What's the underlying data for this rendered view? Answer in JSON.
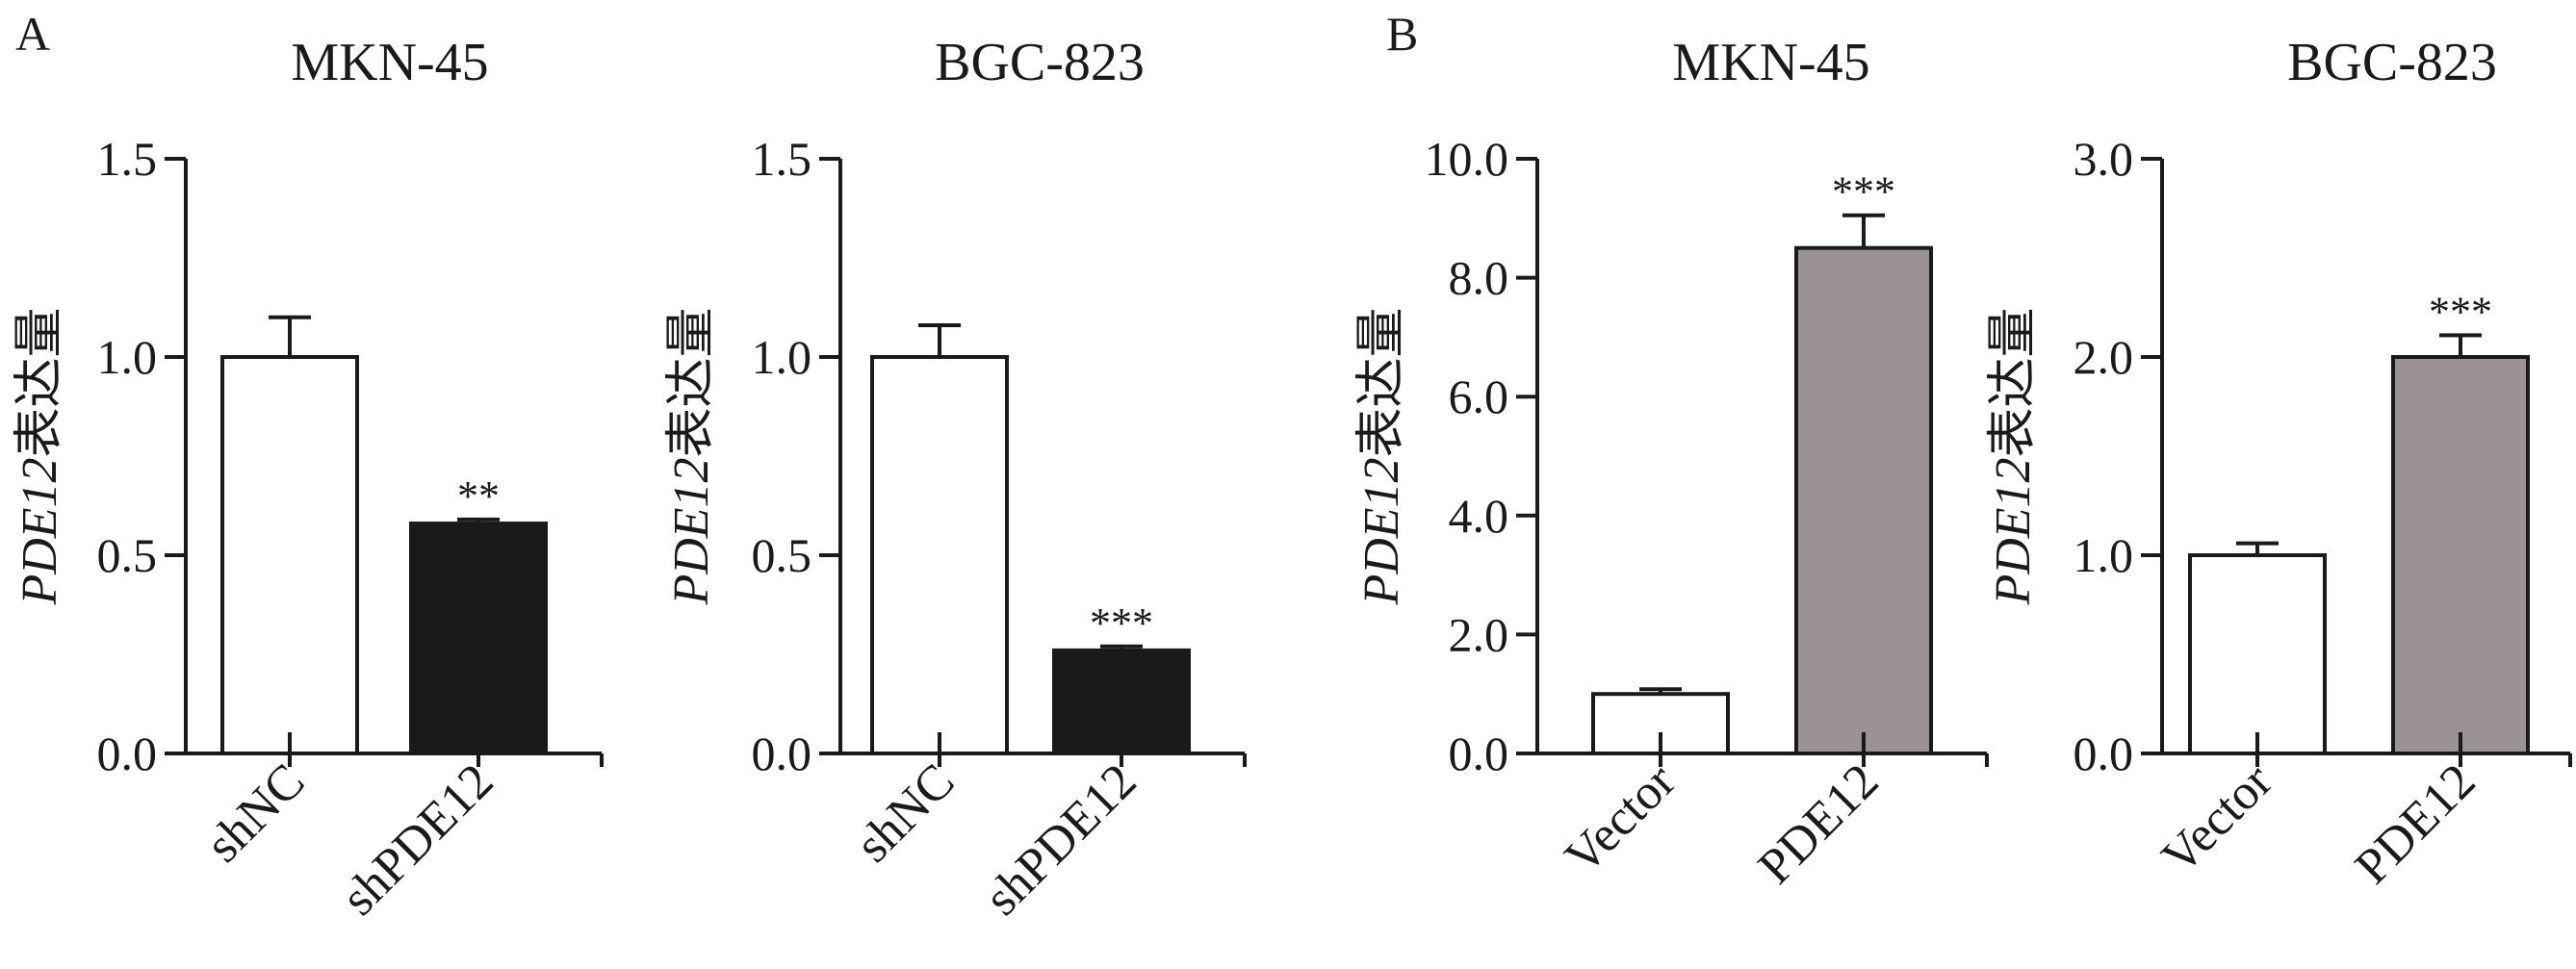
{
  "panel_letters": [
    "A",
    "B"
  ],
  "colors": {
    "axis": "#1a1a1a",
    "bar_control": "#ffffff",
    "bar_knockdown": "#1a1a1a",
    "bar_overexpression": "#9b9295"
  },
  "chart_data": [
    {
      "type": "bar",
      "panel": "A",
      "title": "MKN-45",
      "ylabel_gene": "PDE12",
      "ylabel_text": "表达量",
      "categories": [
        "shNC",
        "shPDE12"
      ],
      "values": [
        1.0,
        0.58
      ],
      "errors": [
        0.1,
        0.01
      ],
      "significance": [
        "",
        "**"
      ],
      "bar_colors": [
        "#ffffff",
        "#1a1a1a"
      ],
      "ylim": [
        0,
        1.5
      ],
      "yticks": [
        "0.0",
        "0.5",
        "1.0",
        "1.5"
      ],
      "ytick_values": [
        0,
        0.5,
        1.0,
        1.5
      ]
    },
    {
      "type": "bar",
      "panel": "A",
      "title": "BGC-823",
      "ylabel_gene": "PDE12",
      "ylabel_text": "表达量",
      "categories": [
        "shNC",
        "shPDE12"
      ],
      "values": [
        1.0,
        0.26
      ],
      "errors": [
        0.08,
        0.01
      ],
      "significance": [
        "",
        "***"
      ],
      "bar_colors": [
        "#ffffff",
        "#1a1a1a"
      ],
      "ylim": [
        0,
        1.5
      ],
      "yticks": [
        "0.0",
        "0.5",
        "1.0",
        "1.5"
      ],
      "ytick_values": [
        0,
        0.5,
        1.0,
        1.5
      ]
    },
    {
      "type": "bar",
      "panel": "B",
      "title": "MKN-45",
      "ylabel_gene": "PDE12",
      "ylabel_text": "表达量",
      "categories": [
        "Vector",
        "PDE12"
      ],
      "values": [
        1.0,
        8.5
      ],
      "errors": [
        0.08,
        0.55
      ],
      "significance": [
        "",
        "***"
      ],
      "bar_colors": [
        "#ffffff",
        "#9b9295"
      ],
      "ylim": [
        0,
        10
      ],
      "yticks": [
        "0.0",
        "2.0",
        "4.0",
        "6.0",
        "8.0",
        "10.0"
      ],
      "ytick_values": [
        0,
        2,
        4,
        6,
        8,
        10
      ]
    },
    {
      "type": "bar",
      "panel": "B",
      "title": "BGC-823",
      "ylabel_gene": "PDE12",
      "ylabel_text": "表达量",
      "categories": [
        "Vector",
        "PDE12"
      ],
      "values": [
        1.0,
        2.0
      ],
      "errors": [
        0.06,
        0.11
      ],
      "significance": [
        "",
        "***"
      ],
      "bar_colors": [
        "#ffffff",
        "#9b9295"
      ],
      "ylim": [
        0,
        3
      ],
      "yticks": [
        "0.0",
        "1.0",
        "2.0",
        "3.0"
      ],
      "ytick_values": [
        0,
        1,
        2,
        3
      ]
    }
  ]
}
